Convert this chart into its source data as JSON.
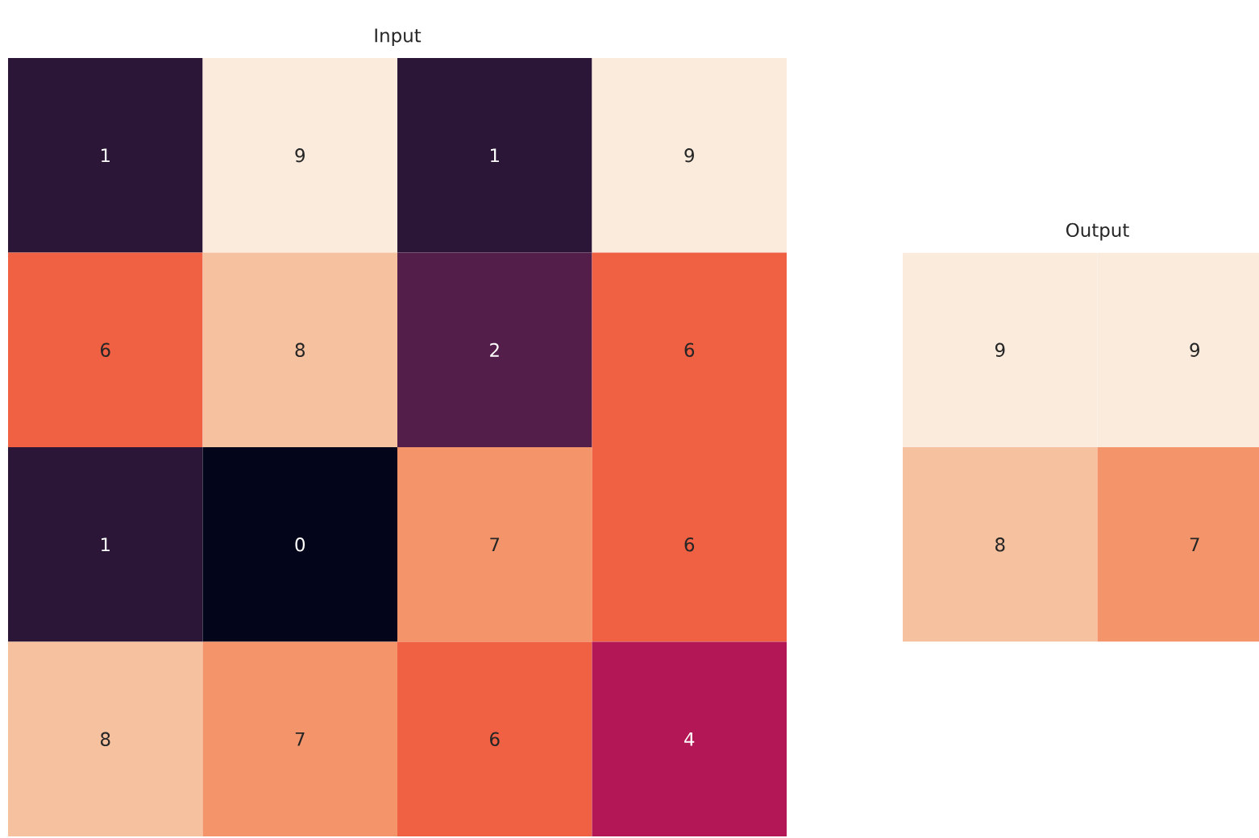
{
  "chart_data": [
    {
      "type": "heatmap",
      "title": "Input",
      "categories": [
        null,
        null,
        null,
        null
      ],
      "y_categories": [
        null,
        null,
        null,
        null
      ],
      "cells": [
        [
          1,
          9,
          1,
          9
        ],
        [
          6,
          8,
          2,
          6
        ],
        [
          1,
          0,
          7,
          6
        ],
        [
          8,
          7,
          6,
          4
        ]
      ],
      "data_labels": true
    },
    {
      "type": "heatmap",
      "title": "Output",
      "categories": [
        null,
        null
      ],
      "y_categories": [
        null,
        null
      ],
      "cells": [
        [
          9,
          9
        ],
        [
          8,
          7
        ]
      ],
      "data_labels": true
    }
  ]
}
